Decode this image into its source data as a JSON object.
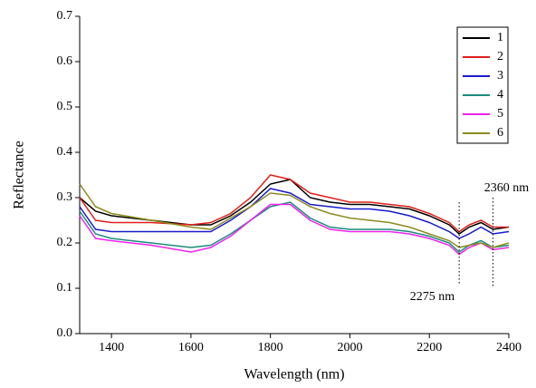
{
  "chart_data": {
    "type": "line",
    "xlabel": "Wavelength (nm)",
    "ylabel": "Reflectance",
    "x": [
      1320,
      1360,
      1400,
      1500,
      1600,
      1650,
      1700,
      1750,
      1800,
      1850,
      1900,
      1950,
      2000,
      2050,
      2100,
      2150,
      2200,
      2250,
      2275,
      2300,
      2330,
      2360,
      2400
    ],
    "series": [
      {
        "name": "1",
        "color": "#000000",
        "values": [
          0.3,
          0.27,
          0.26,
          0.25,
          0.24,
          0.24,
          0.26,
          0.29,
          0.33,
          0.34,
          0.3,
          0.29,
          0.285,
          0.285,
          0.28,
          0.275,
          0.26,
          0.24,
          0.22,
          0.235,
          0.245,
          0.23,
          0.235
        ]
      },
      {
        "name": "2",
        "color": "#e0201c",
        "values": [
          0.3,
          0.25,
          0.245,
          0.245,
          0.24,
          0.245,
          0.265,
          0.3,
          0.35,
          0.34,
          0.31,
          0.3,
          0.29,
          0.29,
          0.285,
          0.28,
          0.265,
          0.245,
          0.225,
          0.24,
          0.25,
          0.235,
          0.235
        ]
      },
      {
        "name": "3",
        "color": "#1a1acc",
        "values": [
          0.28,
          0.23,
          0.225,
          0.225,
          0.225,
          0.225,
          0.25,
          0.28,
          0.32,
          0.31,
          0.285,
          0.28,
          0.275,
          0.275,
          0.27,
          0.26,
          0.245,
          0.225,
          0.21,
          0.22,
          0.235,
          0.22,
          0.225
        ]
      },
      {
        "name": "4",
        "color": "#1b8c7c",
        "values": [
          0.27,
          0.22,
          0.21,
          0.2,
          0.19,
          0.195,
          0.22,
          0.25,
          0.28,
          0.29,
          0.255,
          0.235,
          0.23,
          0.23,
          0.23,
          0.225,
          0.215,
          0.2,
          0.18,
          0.195,
          0.205,
          0.19,
          0.195
        ]
      },
      {
        "name": "5",
        "color": "#ee22ee",
        "values": [
          0.26,
          0.21,
          0.205,
          0.195,
          0.18,
          0.19,
          0.215,
          0.25,
          0.285,
          0.285,
          0.25,
          0.23,
          0.225,
          0.225,
          0.225,
          0.22,
          0.21,
          0.195,
          0.175,
          0.19,
          0.2,
          0.185,
          0.19
        ]
      },
      {
        "name": "6",
        "color": "#8c8c1c",
        "values": [
          0.33,
          0.28,
          0.265,
          0.25,
          0.235,
          0.23,
          0.255,
          0.28,
          0.31,
          0.305,
          0.28,
          0.265,
          0.255,
          0.25,
          0.245,
          0.235,
          0.22,
          0.205,
          0.19,
          0.195,
          0.2,
          0.19,
          0.2
        ]
      }
    ],
    "annotations": [
      {
        "text": "2360 nm",
        "x": 2360
      },
      {
        "text": "2275 nm",
        "x": 2275
      }
    ],
    "xlim": [
      1320,
      2400
    ],
    "xticks": [
      1400,
      1600,
      1800,
      2000,
      2200,
      2400
    ],
    "ylim": [
      0,
      0.7
    ],
    "yticks": [
      {
        "value": 0,
        "label": "0.0"
      },
      0.1,
      0.2,
      0.3,
      0.4,
      0.5,
      0.6,
      0.7
    ],
    "legend": "upper right",
    "grid": false
  }
}
